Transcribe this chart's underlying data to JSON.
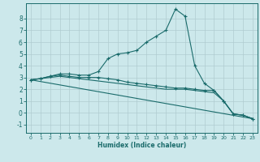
{
  "xlabel": "Humidex (Indice chaleur)",
  "xlim": [
    -0.5,
    23.5
  ],
  "ylim": [
    -1.7,
    9.3
  ],
  "yticks": [
    -1,
    0,
    1,
    2,
    3,
    4,
    5,
    6,
    7,
    8
  ],
  "xticks": [
    0,
    1,
    2,
    3,
    4,
    5,
    6,
    7,
    8,
    9,
    10,
    11,
    12,
    13,
    14,
    15,
    16,
    17,
    18,
    19,
    20,
    21,
    22,
    23
  ],
  "bg_color": "#cce8eb",
  "grid_color": "#b0ccd0",
  "line_color": "#1a6b6b",
  "lines": [
    {
      "x": [
        0,
        1,
        2,
        3,
        4,
        5,
        6,
        7,
        8,
        9,
        10,
        11,
        12,
        13,
        14,
        15,
        16,
        17,
        18,
        19,
        20,
        21,
        22,
        23
      ],
      "y": [
        2.8,
        2.9,
        3.1,
        3.3,
        3.3,
        3.2,
        3.2,
        3.5,
        4.6,
        5.0,
        5.1,
        5.3,
        6.0,
        6.5,
        7.0,
        8.8,
        8.2,
        4.0,
        2.5,
        1.9,
        1.0,
        -0.1,
        -0.2,
        -0.5
      ],
      "marker": true
    },
    {
      "x": [
        0,
        23
      ],
      "y": [
        2.8,
        -0.5
      ],
      "marker": false
    },
    {
      "x": [
        0,
        1,
        2,
        3,
        4,
        5,
        6,
        7,
        8,
        9,
        10,
        11,
        12,
        13,
        14,
        15,
        16,
        17,
        18,
        19,
        20,
        21,
        22,
        23
      ],
      "y": [
        2.8,
        2.9,
        3.1,
        3.2,
        3.1,
        3.0,
        3.0,
        3.0,
        2.9,
        2.8,
        2.6,
        2.5,
        2.4,
        2.3,
        2.2,
        2.1,
        2.1,
        2.0,
        1.9,
        1.9,
        1.0,
        -0.1,
        -0.2,
        -0.5
      ],
      "marker": true
    },
    {
      "x": [
        0,
        1,
        2,
        3,
        4,
        5,
        6,
        7,
        8,
        9,
        10,
        11,
        12,
        13,
        14,
        15,
        16,
        17,
        18,
        19,
        20,
        21,
        22,
        23
      ],
      "y": [
        2.8,
        2.9,
        3.0,
        3.1,
        3.0,
        2.9,
        2.8,
        2.7,
        2.6,
        2.5,
        2.4,
        2.3,
        2.2,
        2.1,
        2.0,
        2.0,
        2.0,
        1.9,
        1.8,
        1.7,
        1.0,
        -0.1,
        -0.2,
        -0.5
      ],
      "marker": false
    }
  ]
}
